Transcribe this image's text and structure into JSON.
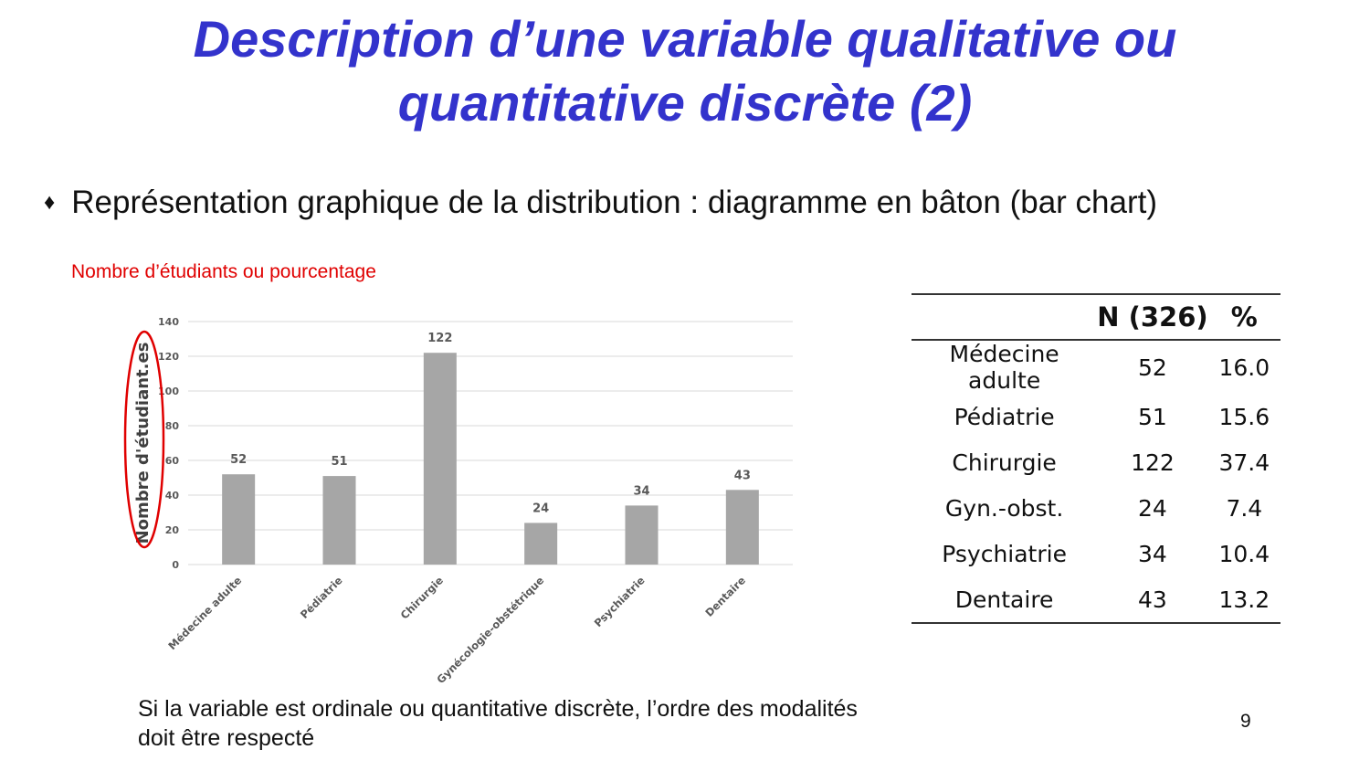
{
  "slide": {
    "title_line1": "Description d’une variable qualitative ou",
    "title_line2": "quantitative discrète (2)",
    "bullet_symbol": "♦",
    "bullet_text": "Représentation graphique de la distribution : diagramme en bâton (bar chart)",
    "ylabel_note": "Nombre d’étudiants ou pourcentage",
    "note_line1": "Si la variable est ordinale ou quantitative discrète, l’ordre des modalités",
    "note_line2": "doit être respecté",
    "page_number": "9",
    "highlight_color": "#e00000",
    "title_color": "#3333cc"
  },
  "chart_data": {
    "type": "bar",
    "title": "",
    "ylabel": "Nombre d'étudiant.es",
    "xlabel": "",
    "categories": [
      "Médecine adulte",
      "Pédiatrie",
      "Chirurgie",
      "Gynécologie-obstétrique",
      "Psychiatrie",
      "Dentaire"
    ],
    "values": [
      52,
      51,
      122,
      24,
      34,
      43
    ],
    "data_labels": [
      "52",
      "51",
      "122",
      "24",
      "34",
      "43"
    ],
    "ylim": [
      0,
      140
    ],
    "yticks": [
      0,
      20,
      40,
      60,
      80,
      100,
      120,
      140
    ],
    "grid": true,
    "bar_color": "#a6a6a6"
  },
  "table": {
    "headers": [
      "",
      "N (326)",
      "%"
    ],
    "rows": [
      {
        "category": "Médecine adulte",
        "n": "52",
        "pct": "16.0"
      },
      {
        "category": "Pédiatrie",
        "n": "51",
        "pct": "15.6"
      },
      {
        "category": "Chirurgie",
        "n": "122",
        "pct": "37.4"
      },
      {
        "category": "Gyn.-obst.",
        "n": "24",
        "pct": "7.4"
      },
      {
        "category": "Psychiatrie",
        "n": "34",
        "pct": "10.4"
      },
      {
        "category": "Dentaire",
        "n": "43",
        "pct": "13.2"
      }
    ]
  }
}
